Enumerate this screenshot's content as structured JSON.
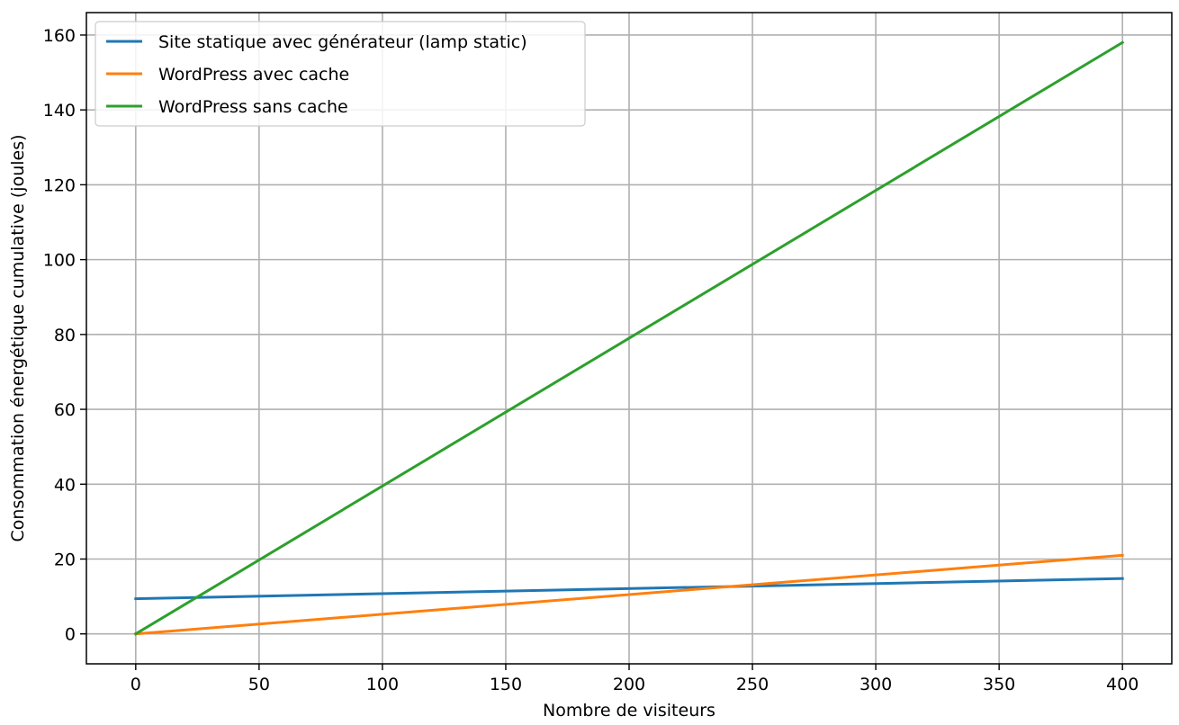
{
  "chart_data": {
    "type": "line",
    "title": "",
    "xlabel": "Nombre de visiteurs",
    "ylabel": "Consommation énergétique cumulative (joules)",
    "xlim": [
      -20,
      420
    ],
    "ylim": [
      -8,
      166
    ],
    "xticks": [
      0,
      50,
      100,
      150,
      200,
      250,
      300,
      350,
      400
    ],
    "yticks": [
      0,
      20,
      40,
      60,
      80,
      100,
      120,
      140,
      160
    ],
    "grid": true,
    "legend": "top-left",
    "series": [
      {
        "name": "Site statique avec générateur (lamp static)",
        "color": "#1f77b4",
        "x": [
          0,
          400
        ],
        "y": [
          9.4,
          14.8
        ]
      },
      {
        "name": "WordPress avec cache",
        "color": "#ff7f0e",
        "x": [
          0,
          400
        ],
        "y": [
          0,
          21.0
        ]
      },
      {
        "name": "WordPress sans cache",
        "color": "#2ca02c",
        "x": [
          0,
          400
        ],
        "y": [
          0,
          158.0
        ]
      }
    ]
  }
}
